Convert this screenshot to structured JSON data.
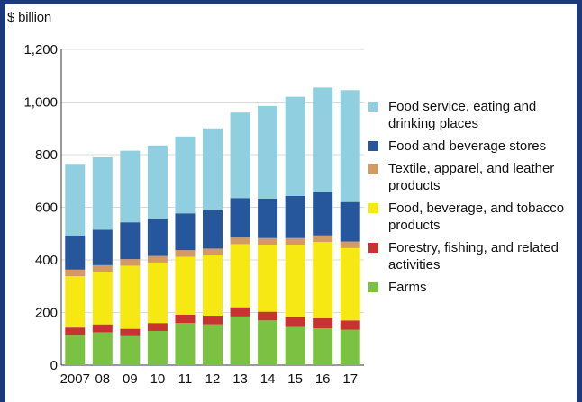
{
  "chart_data": {
    "type": "bar",
    "stacked": true,
    "ylabel": "$ billion",
    "ylim": [
      0,
      1200
    ],
    "yticks": [
      "0",
      "200",
      "400",
      "600",
      "800",
      "1,000",
      "1,200"
    ],
    "grid": true,
    "legend_placement": "right",
    "categories": [
      "2007",
      "08",
      "09",
      "10",
      "11",
      "12",
      "13",
      "14",
      "15",
      "16",
      "17"
    ],
    "series": [
      {
        "name": "Farms",
        "color": "#7cc242",
        "values": [
          115,
          125,
          110,
          130,
          160,
          155,
          185,
          170,
          145,
          140,
          135
        ]
      },
      {
        "name": "Forestry, fishing, and related activities",
        "color": "#c7332f",
        "values": [
          28,
          30,
          28,
          30,
          32,
          33,
          35,
          33,
          38,
          38,
          35
        ]
      },
      {
        "name": "Food, beverage, and tobacco products",
        "color": "#f6e812",
        "values": [
          195,
          200,
          240,
          230,
          220,
          230,
          240,
          255,
          275,
          290,
          275
        ]
      },
      {
        "name": "Textile, apparel, and leather products",
        "color": "#d39a64",
        "values": [
          25,
          25,
          25,
          25,
          25,
          25,
          25,
          25,
          25,
          25,
          25
        ]
      },
      {
        "name": "Food and beverage stores",
        "color": "#26569c",
        "values": [
          130,
          135,
          140,
          140,
          140,
          145,
          150,
          150,
          160,
          165,
          150
        ]
      },
      {
        "name": "Food service, eating and drinking places",
        "color": "#8fcfe0",
        "values": [
          272,
          275,
          272,
          280,
          292,
          312,
          325,
          352,
          377,
          397,
          425
        ]
      }
    ]
  }
}
